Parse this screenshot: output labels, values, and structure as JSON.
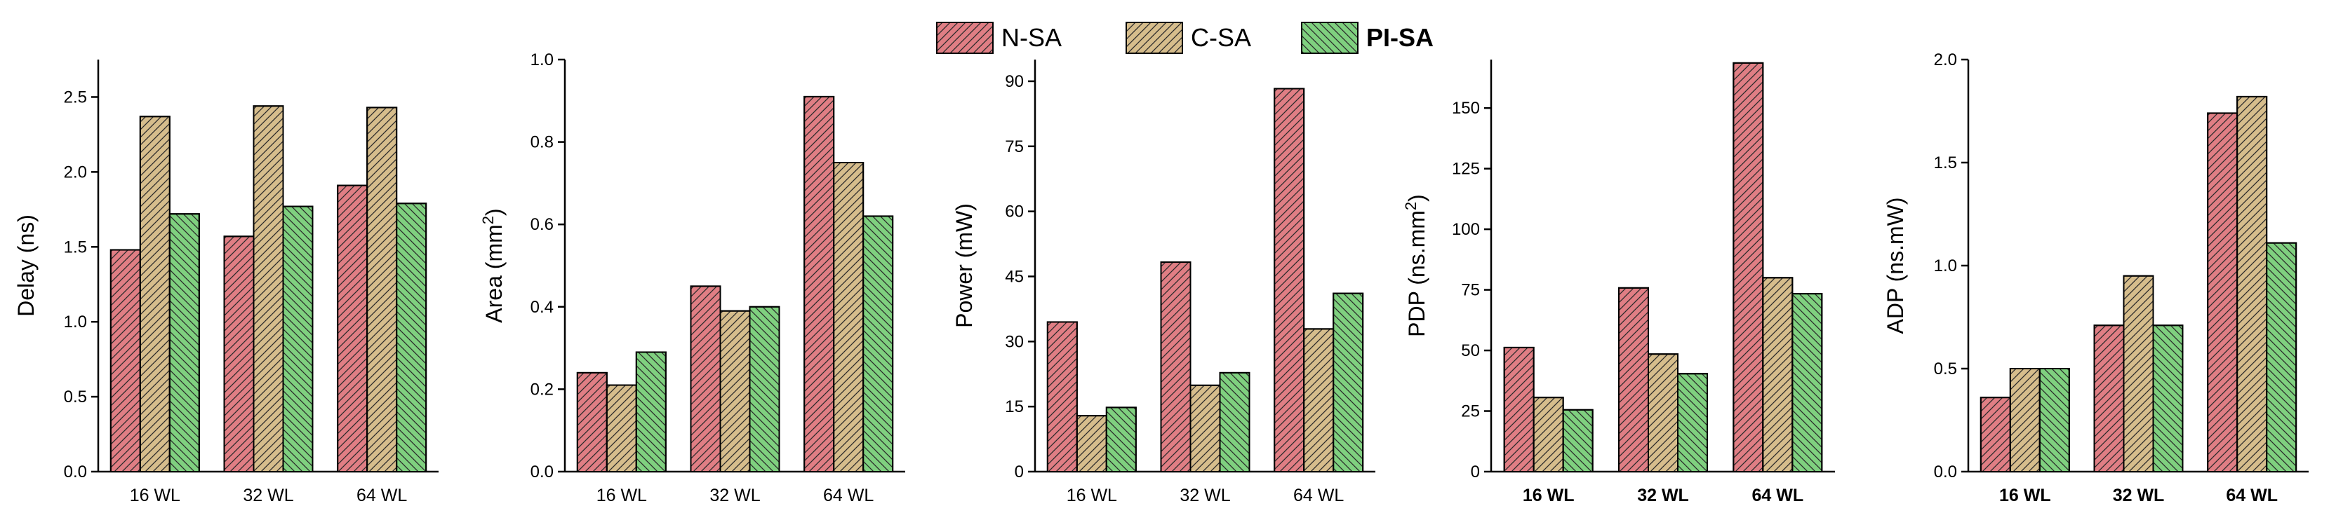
{
  "legend": [
    {
      "label": "N-SA",
      "color": "#e07e84",
      "hatch": "forward",
      "bold": false
    },
    {
      "label": "C-SA",
      "color": "#d6bd8c",
      "hatch": "forward",
      "bold": false
    },
    {
      "label": "PI-SA",
      "color": "#7fd07f",
      "hatch": "backward",
      "bold": true
    }
  ],
  "chart_data": [
    {
      "type": "bar",
      "title": "",
      "ylabel": "Delay (ns)",
      "ylabel_sup": "",
      "ylabel_after": "",
      "categories": [
        "16 WL",
        "32 WL",
        "64 WL"
      ],
      "bold_categories": false,
      "ylim": [
        0,
        2.75
      ],
      "yticks": [
        0.0,
        0.5,
        1.0,
        1.5,
        2.0,
        2.5
      ],
      "ytick_labels": [
        "0.0",
        "0.5",
        "1.0",
        "1.5",
        "2.0",
        "2.5"
      ],
      "series": [
        {
          "name": "N-SA",
          "values": [
            1.48,
            1.57,
            1.91
          ]
        },
        {
          "name": "C-SA",
          "values": [
            2.37,
            2.44,
            2.43
          ]
        },
        {
          "name": "PI-SA",
          "values": [
            1.72,
            1.77,
            1.79
          ]
        }
      ]
    },
    {
      "type": "bar",
      "title": "",
      "ylabel": "Area (mm",
      "ylabel_sup": "2",
      "ylabel_after": ")",
      "categories": [
        "16 WL",
        "32 WL",
        "64 WL"
      ],
      "bold_categories": false,
      "ylim": [
        0,
        1.0
      ],
      "yticks": [
        0.0,
        0.2,
        0.4,
        0.6,
        0.8,
        1.0
      ],
      "ytick_labels": [
        "0.0",
        "0.2",
        "0.4",
        "0.6",
        "0.8",
        "1.0"
      ],
      "series": [
        {
          "name": "N-SA",
          "values": [
            0.24,
            0.45,
            0.91
          ]
        },
        {
          "name": "C-SA",
          "values": [
            0.21,
            0.39,
            0.75
          ]
        },
        {
          "name": "PI-SA",
          "values": [
            0.29,
            0.4,
            0.62
          ]
        }
      ]
    },
    {
      "type": "bar",
      "title": "",
      "ylabel": "Power (mW)",
      "ylabel_sup": "",
      "ylabel_after": "",
      "categories": [
        "16 WL",
        "32 WL",
        "64 WL"
      ],
      "bold_categories": false,
      "ylim": [
        0,
        95
      ],
      "yticks": [
        0,
        15,
        30,
        45,
        60,
        75,
        90
      ],
      "ytick_labels": [
        "0",
        "15",
        "30",
        "45",
        "60",
        "75",
        "90"
      ],
      "series": [
        {
          "name": "N-SA",
          "values": [
            34.5,
            48.3,
            88.3
          ]
        },
        {
          "name": "C-SA",
          "values": [
            12.9,
            19.9,
            32.9
          ]
        },
        {
          "name": "PI-SA",
          "values": [
            14.8,
            22.8,
            41.1
          ]
        }
      ]
    },
    {
      "type": "bar",
      "title": "",
      "ylabel": "PDP (ns.mm",
      "ylabel_sup": "2",
      "ylabel_after": ")",
      "categories": [
        "16 WL",
        "32 WL",
        "64 WL"
      ],
      "bold_categories": true,
      "ylim": [
        0,
        170
      ],
      "yticks": [
        0,
        25,
        50,
        75,
        100,
        125,
        150
      ],
      "ytick_labels": [
        "0",
        "25",
        "50",
        "75",
        "100",
        "125",
        "150"
      ],
      "series": [
        {
          "name": "N-SA",
          "values": [
            51.2,
            75.8,
            168.6
          ]
        },
        {
          "name": "C-SA",
          "values": [
            30.6,
            48.5,
            80.0
          ]
        },
        {
          "name": "PI-SA",
          "values": [
            25.5,
            40.4,
            73.4
          ]
        }
      ]
    },
    {
      "type": "bar",
      "title": "",
      "ylabel": "ADP (ns.mW)",
      "ylabel_sup": "",
      "ylabel_after": "",
      "categories": [
        "16 WL",
        "32 WL",
        "64 WL"
      ],
      "bold_categories": true,
      "ylim": [
        0,
        2.0
      ],
      "yticks": [
        0.0,
        0.5,
        1.0,
        1.5,
        2.0
      ],
      "ytick_labels": [
        "0.0",
        "0.5",
        "1.0",
        "1.5",
        "2.0"
      ],
      "series": [
        {
          "name": "N-SA",
          "values": [
            0.36,
            0.71,
            1.74
          ]
        },
        {
          "name": "C-SA",
          "values": [
            0.5,
            0.95,
            1.82
          ]
        },
        {
          "name": "PI-SA",
          "values": [
            0.5,
            0.71,
            1.11
          ]
        }
      ]
    }
  ]
}
